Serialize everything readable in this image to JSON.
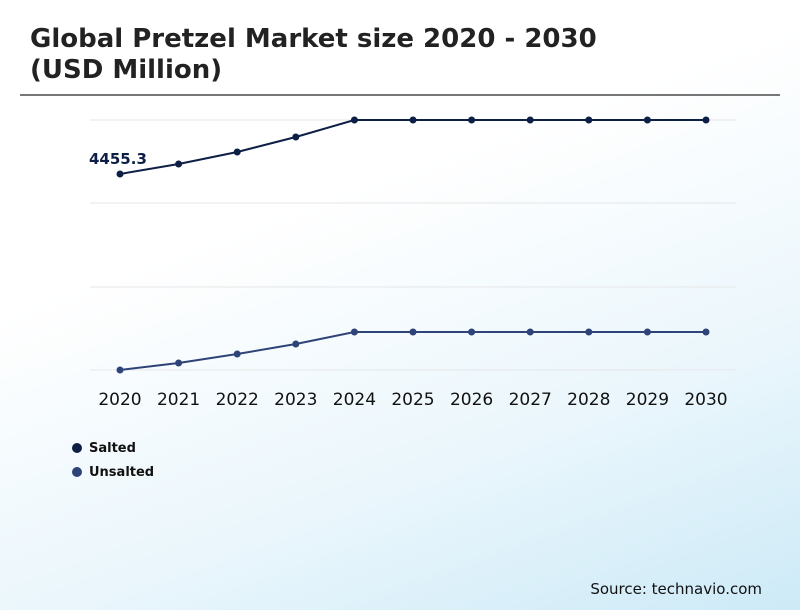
{
  "chart_data": {
    "type": "line",
    "title": "Global Pretzel Market size 2020 - 2030\n(USD Million)",
    "title_lines": [
      "Global Pretzel Market size 2020 - 2030",
      "(USD Million)"
    ],
    "categories": [
      "2020",
      "2021",
      "2022",
      "2023",
      "2024",
      "2025",
      "2026",
      "2027",
      "2028",
      "2029",
      "2030"
    ],
    "series": [
      {
        "name": "Salted",
        "color": "#0d1f45",
        "values": [
          4455.3,
          4555,
          4675,
          4825,
          4995,
          4995,
          4995,
          4995,
          4995,
          4995,
          4995
        ]
      },
      {
        "name": "Unsalted",
        "color": "#2e4377",
        "values": [
          2495,
          2565,
          2655,
          2755,
          2875,
          2875,
          2875,
          2875,
          2875,
          2875,
          2875
        ]
      }
    ],
    "annotations": [
      {
        "series": "Salted",
        "category": "2020",
        "text": "4455.3"
      }
    ],
    "ylim": [
      2495,
      4995
    ],
    "grid": true,
    "legend": "bottom-left",
    "source": "Source: technavio.com"
  }
}
